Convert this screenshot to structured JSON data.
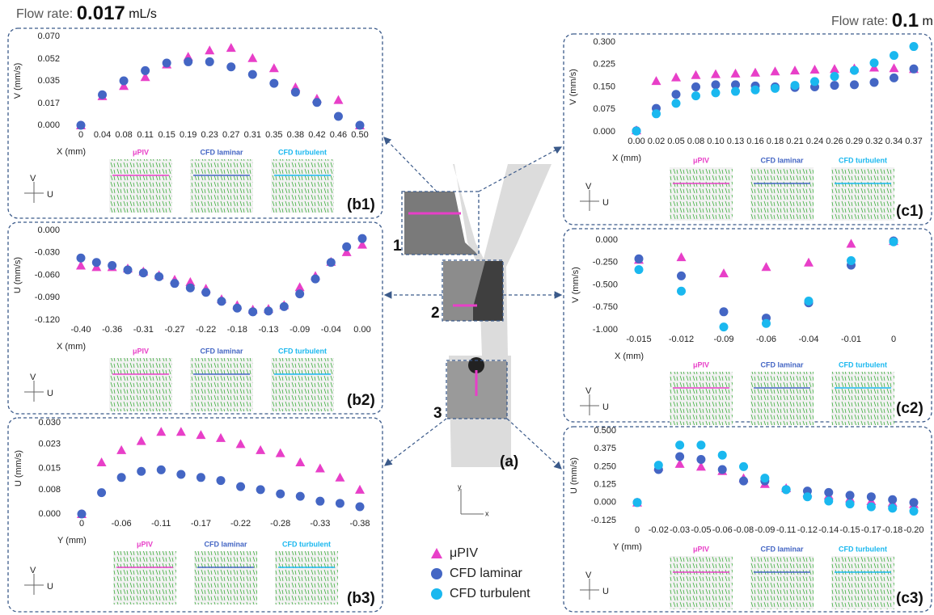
{
  "header": {
    "left": {
      "label": "Flow rate:",
      "value": 0.017,
      "unit": "mL/s"
    },
    "right": {
      "label": "Flow rate:",
      "value": 0.1,
      "unit": "mL/s"
    }
  },
  "center": {
    "regions": [
      "1",
      "2",
      "3"
    ],
    "panel": "(a)",
    "axes": [
      "y",
      "x"
    ]
  },
  "chart_data": [
    {
      "type": "scatter",
      "panel": "(b1)",
      "x_label": "X (mm)",
      "y_label": "V (mm/s)",
      "categories": [
        "0",
        "0.04",
        "0.08",
        "0.11",
        "0.15",
        "0.19",
        "0.23",
        "0.27",
        "0.31",
        "0.35",
        "0.38",
        "0.42",
        "0.46",
        "0.50"
      ],
      "ylim": [
        0,
        0.07
      ],
      "yticks": [
        {
          "value": 0,
          "label": "0.000"
        },
        {
          "value": 0.017,
          "label": "0.017"
        },
        {
          "value": 0.035,
          "label": "0.035"
        },
        {
          "value": 0.052,
          "label": "0.052"
        },
        {
          "value": 0.07,
          "label": "0.070"
        }
      ],
      "series": [
        {
          "name": "μPIV",
          "color": "#e83fc8",
          "marker": "triangle",
          "values": [
            0,
            0.023,
            0.031,
            0.038,
            0.048,
            0.054,
            0.059,
            0.061,
            0.053,
            0.045,
            0.03,
            0.021,
            0.02,
            0
          ]
        },
        {
          "name": "CFD laminar",
          "color": "#4466c4",
          "marker": "circle",
          "values": [
            0,
            0.024,
            0.035,
            0.043,
            0.049,
            0.05,
            0.05,
            0.046,
            0.04,
            0.033,
            0.026,
            0.018,
            0.007,
            0
          ]
        }
      ],
      "inset_labels": [
        "μPIV",
        "CFD laminar",
        "CFD turbulent"
      ],
      "icon_labels": [
        "V",
        "U"
      ]
    },
    {
      "type": "scatter",
      "panel": "(b2)",
      "x_label": "X (mm)",
      "y_label": "U (mm/s)",
      "categories": [
        "-0.40",
        null,
        "-0.36",
        null,
        "-0.31",
        null,
        "-0.27",
        null,
        "-0.22",
        null,
        "-0.18",
        null,
        "-0.13",
        null,
        "-0.09",
        null,
        "-0.04",
        null,
        "0.00"
      ],
      "ylim": [
        -0.12,
        0
      ],
      "yticks": [
        {
          "value": 0,
          "label": "0.000"
        },
        {
          "value": -0.03,
          "label": "-0.030"
        },
        {
          "value": -0.06,
          "label": "-0.060"
        },
        {
          "value": -0.09,
          "label": "-0.090"
        },
        {
          "value": -0.12,
          "label": "-0.120"
        }
      ],
      "series": [
        {
          "name": "μPIV",
          "color": "#e83fc8",
          "marker": "triangle",
          "values": [
            -0.047,
            -0.049,
            -0.049,
            -0.051,
            -0.055,
            -0.06,
            -0.066,
            -0.069,
            -0.078,
            -0.092,
            -0.1,
            -0.106,
            -0.105,
            -0.1,
            -0.076,
            -0.061,
            -0.042,
            -0.029,
            -0.019
          ]
        },
        {
          "name": "CFD laminar",
          "color": "#4466c4",
          "marker": "circle",
          "values": [
            -0.037,
            -0.043,
            -0.047,
            -0.053,
            -0.057,
            -0.062,
            -0.071,
            -0.077,
            -0.083,
            -0.095,
            -0.104,
            -0.109,
            -0.108,
            -0.102,
            -0.085,
            -0.065,
            -0.043,
            -0.022,
            -0.011
          ]
        }
      ],
      "inset_labels": [
        "μPIV",
        "CFD laminar",
        "CFD turbulent"
      ],
      "icon_labels": [
        "V",
        "U"
      ]
    },
    {
      "type": "scatter",
      "panel": "(b3)",
      "x_label": "Y (mm)",
      "y_label": "U (mm/s)",
      "categories": [
        "0",
        null,
        "-0.06",
        null,
        "-0.11",
        null,
        "-0.17",
        null,
        "-0.22",
        null,
        "-0.28",
        null,
        "-0.33",
        null,
        "-0.38"
      ],
      "ylim": [
        0,
        0.03
      ],
      "yticks": [
        {
          "value": 0,
          "label": "0.000"
        },
        {
          "value": 0.008,
          "label": "0.008"
        },
        {
          "value": 0.015,
          "label": "0.015"
        },
        {
          "value": 0.023,
          "label": "0.023"
        },
        {
          "value": 0.03,
          "label": "0.030"
        }
      ],
      "series": [
        {
          "name": "μPIV",
          "color": "#e83fc8",
          "marker": "triangle",
          "values": [
            0,
            0.017,
            0.021,
            0.024,
            0.027,
            0.027,
            0.026,
            0.025,
            0.023,
            0.021,
            0.02,
            0.017,
            0.015,
            0.012,
            0.008
          ]
        },
        {
          "name": "CFD laminar",
          "color": "#4466c4",
          "marker": "circle",
          "values": [
            0,
            0.007,
            0.012,
            0.014,
            0.0145,
            0.013,
            0.012,
            0.011,
            0.009,
            0.008,
            0.0066,
            0.0058,
            0.0042,
            0.0035,
            0.0024
          ]
        }
      ],
      "inset_labels": [
        "μPIV",
        "CFD laminar",
        "CFD turbulent"
      ],
      "icon_labels": [
        "V",
        "U"
      ]
    },
    {
      "type": "scatter",
      "panel": "(c1)",
      "x_label": "X (mm)",
      "y_label": "V (mm/s)",
      "categories": [
        "0.00",
        "0.02",
        "0.05",
        "0.08",
        "0.10",
        "0.13",
        "0.16",
        "0.18",
        "0.21",
        "0.24",
        "0.26",
        "0.29",
        "0.32",
        "0.34",
        "0.37"
      ],
      "ylim": [
        0,
        0.3
      ],
      "yticks": [
        {
          "value": 0,
          "label": "0.000"
        },
        {
          "value": 0.075,
          "label": "0.075"
        },
        {
          "value": 0.15,
          "label": "0.150"
        },
        {
          "value": 0.225,
          "label": "0.225"
        },
        {
          "value": 0.3,
          "label": "0.300"
        }
      ],
      "series": [
        {
          "name": "μPIV",
          "color": "#e83fc8",
          "marker": "triangle",
          "values": [
            0.005,
            0.17,
            0.182,
            0.19,
            0.193,
            0.195,
            0.198,
            0.202,
            0.205,
            0.208,
            0.21,
            0.212,
            0.215,
            0.213,
            0.21
          ]
        },
        {
          "name": "CFD laminar",
          "color": "#4466c4",
          "marker": "circle",
          "values": [
            0.003,
            0.078,
            0.125,
            0.15,
            0.157,
            0.157,
            0.153,
            0.15,
            0.148,
            0.15,
            0.155,
            0.157,
            0.165,
            0.18,
            0.21
          ]
        },
        {
          "name": "CFD turbulent",
          "color": "#1ab8ef",
          "marker": "circle",
          "values": [
            0.002,
            0.06,
            0.095,
            0.12,
            0.13,
            0.135,
            0.14,
            0.145,
            0.155,
            0.168,
            0.185,
            0.205,
            0.23,
            0.255,
            0.285
          ]
        }
      ],
      "inset_labels": [
        "μPIV",
        "CFD laminar",
        "CFD turbulent"
      ],
      "icon_labels": [
        "V",
        "U"
      ]
    },
    {
      "type": "scatter",
      "panel": "(c2)",
      "x_label": "X (mm)",
      "y_label": "V (mm/s)",
      "categories": [
        "-0.015",
        "-0.012",
        "-0.09",
        "-0.06",
        "-0.04",
        "-0.01",
        "0"
      ],
      "ylim": [
        -1,
        0
      ],
      "yticks": [
        {
          "value": 0,
          "label": "0.000"
        },
        {
          "value": -0.25,
          "label": "-0.250"
        },
        {
          "value": -0.5,
          "label": "-0.500"
        },
        {
          "value": -0.75,
          "label": "-0.750"
        },
        {
          "value": -1,
          "label": "-1.000"
        }
      ],
      "series": [
        {
          "name": "μPIV",
          "color": "#e83fc8",
          "marker": "triangle",
          "values": [
            -0.22,
            -0.19,
            -0.37,
            -0.3,
            -0.25,
            -0.04,
            -0.01
          ]
        },
        {
          "name": "CFD laminar",
          "color": "#4466c4",
          "marker": "circle",
          "values": [
            -0.21,
            -0.4,
            -0.8,
            -0.87,
            -0.7,
            -0.28,
            -0.01
          ]
        },
        {
          "name": "CFD turbulent",
          "color": "#1ab8ef",
          "marker": "circle",
          "values": [
            -0.33,
            -0.57,
            -0.97,
            -0.93,
            -0.68,
            -0.23,
            -0.02
          ]
        }
      ],
      "inset_labels": [
        "μPIV",
        "CFD laminar",
        "CFD turbulent"
      ],
      "icon_labels": [
        "V",
        "U"
      ]
    },
    {
      "type": "scatter",
      "panel": "(c3)",
      "x_label": "Y (mm)",
      "y_label": "U (mm/s)",
      "categories": [
        "0",
        "-0.02",
        "-0.03",
        "-0.05",
        "-0.06",
        "-0.08",
        "-0.09",
        "-0.11",
        "-0.12",
        "-0.14",
        "-0.15",
        "-0.17",
        "-0.18",
        "-0.20"
      ],
      "ylim": [
        -0.125,
        0.5
      ],
      "yticks": [
        {
          "value": 0.5,
          "label": "0.500"
        },
        {
          "value": 0.375,
          "label": "0.375"
        },
        {
          "value": 0.25,
          "label": "0.250"
        },
        {
          "value": 0.125,
          "label": "0.125"
        },
        {
          "value": 0,
          "label": "0.000"
        },
        {
          "value": -0.125,
          "label": "-0.125"
        }
      ],
      "series": [
        {
          "name": "μPIV",
          "color": "#e83fc8",
          "marker": "triangle",
          "values": [
            0,
            0.25,
            0.27,
            0.25,
            0.22,
            0.17,
            0.13,
            0.1,
            0.07,
            0.05,
            0.03,
            0.01,
            0,
            -0.01
          ]
        },
        {
          "name": "CFD laminar",
          "color": "#4466c4",
          "marker": "circle",
          "values": [
            0,
            0.23,
            0.32,
            0.3,
            0.23,
            0.15,
            0.15,
            0.09,
            0.08,
            0.07,
            0.05,
            0.04,
            0.02,
            0
          ]
        },
        {
          "name": "CFD turbulent",
          "color": "#1ab8ef",
          "marker": "circle",
          "values": [
            0,
            0.26,
            0.4,
            0.4,
            0.33,
            0.25,
            0.17,
            0.09,
            0.04,
            0.01,
            -0.01,
            -0.03,
            -0.04,
            -0.06
          ]
        }
      ],
      "inset_labels": [
        "μPIV",
        "CFD laminar",
        "CFD turbulent"
      ],
      "icon_labels": [
        "V",
        "U"
      ]
    }
  ]
}
